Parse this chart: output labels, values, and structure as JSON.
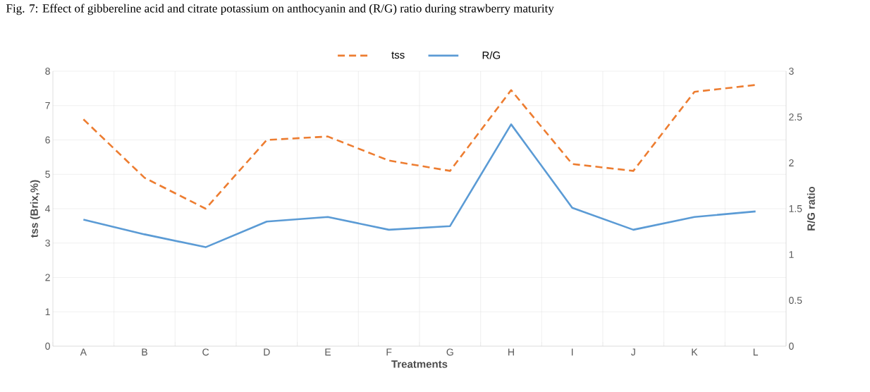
{
  "chart_data": {
    "type": "line",
    "title": "Fig. 7: Effect of gibbereline acid and citrate potassium on anthocyanin and (R/G) ratio during strawberry maturity",
    "categories": [
      "A",
      "B",
      "C",
      "D",
      "E",
      "F",
      "G",
      "H",
      "I",
      "J",
      "K",
      "L"
    ],
    "series": [
      {
        "name": "tss",
        "color": "#ed7d31",
        "line_style": "dashed",
        "values": [
          6.6,
          4.9,
          4.0,
          6.0,
          6.1,
          5.4,
          5.1,
          7.45,
          5.3,
          5.1,
          7.4,
          7.6
        ]
      },
      {
        "name": "R/G",
        "color": "#5b9bd5",
        "line_style": "solid",
        "axis": "y2",
        "values": [
          1.38,
          1.22,
          1.08,
          1.36,
          1.41,
          1.27,
          1.31,
          2.42,
          1.51,
          1.27,
          1.41,
          1.47
        ]
      }
    ],
    "xlabel": "Treatments",
    "ylabel": "tss (Brix,%)",
    "y2label": "R/G ratio",
    "ylim": [
      0,
      8
    ],
    "yticks": [
      0,
      1,
      2,
      3,
      4,
      5,
      6,
      7,
      8
    ],
    "y2lim": [
      0,
      3
    ],
    "y2ticks": [
      0,
      {
        "value": 0.5,
        "label": "0.5"
      },
      1,
      {
        "value": 1.5,
        "label": "1.5"
      },
      2,
      {
        "value": 2.5,
        "label": "2.5"
      },
      3
    ],
    "grid": true,
    "legend": "top",
    "marker": "none"
  }
}
